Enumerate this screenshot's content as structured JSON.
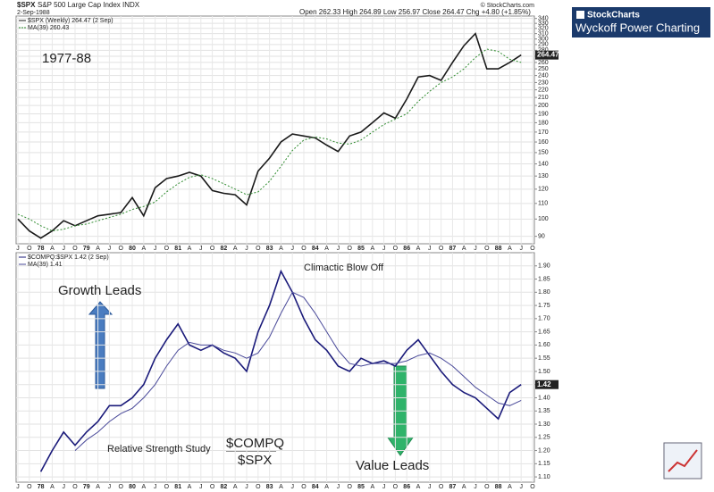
{
  "header": {
    "ticker": "$SPX",
    "name": "S&P 500 Large Cap Index INDX",
    "date": "2-Sep-1988",
    "quote": "Open 262.33 High 264.89 Low 256.97 Close 264.47 Chg +4.80 (+1.85%)",
    "copyright": "© StockCharts.com"
  },
  "branding": {
    "logo": "StockCharts",
    "tagline": "Wyckoff Power Charting"
  },
  "chart_data": [
    {
      "type": "line",
      "log_scale": true,
      "grid": true,
      "annotation": "1977-88",
      "price_tag": "264.47",
      "categories": [
        "J",
        "O",
        "78",
        "A",
        "J",
        "O",
        "79",
        "A",
        "J",
        "O",
        "80",
        "A",
        "J",
        "O",
        "81",
        "A",
        "J",
        "O",
        "82",
        "A",
        "J",
        "O",
        "83",
        "A",
        "J",
        "O",
        "84",
        "A",
        "J",
        "O",
        "85",
        "A",
        "J",
        "O",
        "86",
        "A",
        "J",
        "O",
        "87",
        "A",
        "J",
        "O",
        "88",
        "A",
        "J",
        "O"
      ],
      "series": [
        {
          "name": "$SPX (Weekly) 264.47 (2 Sep)",
          "color": "#1a1a1a",
          "values": [
            100,
            93,
            89,
            93,
            99,
            96,
            99,
            102,
            103,
            104,
            114,
            102,
            121,
            128,
            130,
            133,
            130,
            119,
            117,
            116,
            109,
            134,
            145,
            160,
            168,
            166,
            164,
            157,
            151,
            166,
            170,
            180,
            191,
            185,
            208,
            238,
            240,
            233,
            260,
            288,
            310,
            250,
            250,
            260,
            272,
            null
          ]
        },
        {
          "name": "MA(39) 260.43",
          "color": "#2e8b2e",
          "dashed": true,
          "values": [
            103,
            100,
            96,
            93,
            94,
            96,
            97,
            99,
            101,
            103,
            106,
            108,
            111,
            118,
            124,
            129,
            131,
            128,
            124,
            120,
            116,
            118,
            126,
            138,
            152,
            162,
            165,
            163,
            159,
            158,
            162,
            170,
            178,
            184,
            190,
            205,
            218,
            230,
            238,
            250,
            268,
            282,
            278,
            265,
            260,
            null
          ]
        }
      ],
      "ylim": [
        86,
        345
      ],
      "yticks": [
        90,
        100,
        110,
        120,
        130,
        140,
        150,
        160,
        170,
        180,
        190,
        200,
        210,
        220,
        230,
        240,
        250,
        260,
        270,
        280,
        290,
        300,
        310,
        320,
        330,
        340
      ]
    },
    {
      "type": "line",
      "log_scale": false,
      "grid": true,
      "price_tag": "1.42",
      "annotations": [
        "Climactic Blow Off",
        "Growth Leads",
        "Value Leads",
        "Relative Strength Study",
        "$COMPQ",
        "$SPX"
      ],
      "categories": [
        "J",
        "O",
        "78",
        "A",
        "J",
        "O",
        "79",
        "A",
        "J",
        "O",
        "80",
        "A",
        "J",
        "O",
        "81",
        "A",
        "J",
        "O",
        "82",
        "A",
        "J",
        "O",
        "83",
        "A",
        "J",
        "O",
        "84",
        "A",
        "J",
        "O",
        "85",
        "A",
        "J",
        "O",
        "86",
        "A",
        "J",
        "O",
        "87",
        "A",
        "J",
        "O",
        "88",
        "A",
        "J",
        "O"
      ],
      "series": [
        {
          "name": "$COMPQ:$SPX 1.42 (2 Sep)",
          "color": "#1a1a7a",
          "values": [
            null,
            null,
            1.12,
            1.2,
            1.27,
            1.22,
            1.27,
            1.31,
            1.37,
            1.37,
            1.4,
            1.45,
            1.55,
            1.62,
            1.68,
            1.6,
            1.58,
            1.6,
            1.57,
            1.55,
            1.5,
            1.65,
            1.75,
            1.88,
            1.8,
            1.7,
            1.62,
            1.58,
            1.52,
            1.5,
            1.55,
            1.53,
            1.54,
            1.52,
            1.58,
            1.62,
            1.56,
            1.5,
            1.45,
            1.42,
            1.4,
            1.36,
            1.32,
            1.42,
            1.45,
            null
          ]
        },
        {
          "name": "MA(39) 1.41",
          "color": "#4a4a9a",
          "values": [
            null,
            null,
            null,
            null,
            null,
            1.2,
            1.24,
            1.27,
            1.31,
            1.34,
            1.36,
            1.4,
            1.45,
            1.52,
            1.58,
            1.61,
            1.6,
            1.6,
            1.58,
            1.57,
            1.55,
            1.57,
            1.63,
            1.72,
            1.8,
            1.78,
            1.72,
            1.65,
            1.58,
            1.53,
            1.52,
            1.53,
            1.53,
            1.53,
            1.54,
            1.56,
            1.57,
            1.55,
            1.52,
            1.48,
            1.44,
            1.41,
            1.38,
            1.37,
            1.39,
            null
          ]
        }
      ],
      "ylim": [
        1.08,
        1.95
      ],
      "yticks": [
        {
          "value": 1.1,
          "label": "1.10"
        },
        {
          "value": 1.15,
          "label": "1.15"
        },
        {
          "value": 1.2,
          "label": "1.20"
        },
        {
          "value": 1.25,
          "label": "1.25"
        },
        {
          "value": 1.3,
          "label": "1.30"
        },
        {
          "value": 1.35,
          "label": "1.35"
        },
        {
          "value": 1.4,
          "label": "1.40"
        },
        {
          "value": 1.45,
          "label": "1.45"
        },
        {
          "value": 1.5,
          "label": "1.50"
        },
        {
          "value": 1.55,
          "label": "1.55"
        },
        {
          "value": 1.6,
          "label": "1.60"
        },
        {
          "value": 1.65,
          "label": "1.65"
        },
        {
          "value": 1.7,
          "label": "1.70"
        },
        {
          "value": 1.75,
          "label": "1.75"
        },
        {
          "value": 1.8,
          "label": "1.80"
        },
        {
          "value": 1.85,
          "label": "1.85"
        },
        {
          "value": 1.9,
          "label": "1.90"
        }
      ]
    }
  ]
}
